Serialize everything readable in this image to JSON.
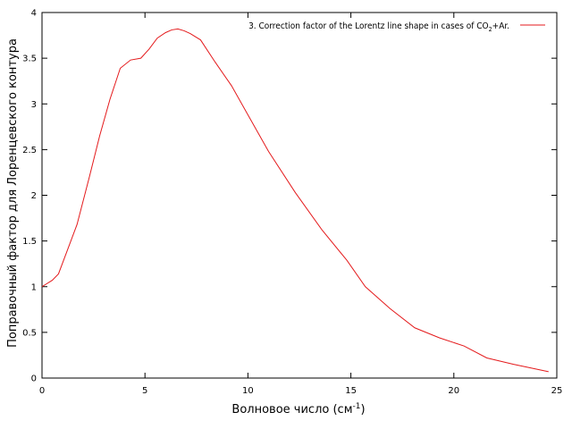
{
  "chart_data": {
    "type": "line",
    "title": "",
    "xlabel": "Волновое число (см",
    "xlabel_sup": "-1",
    "xlabel_suffix": ")",
    "ylabel": "Поправочный фактор для Лоренцевского контура",
    "xlim": [
      0,
      25
    ],
    "ylim": [
      0,
      4
    ],
    "x_ticks": [
      0,
      5,
      10,
      15,
      20,
      25
    ],
    "y_ticks": [
      0,
      0.5,
      1,
      1.5,
      2,
      2.5,
      3,
      3.5,
      4
    ],
    "x_tick_labels": [
      "0",
      "5",
      "10",
      "15",
      "20",
      "25"
    ],
    "y_tick_labels": [
      "0",
      "0.5",
      "1",
      "1.5",
      "2",
      "2.5",
      "3",
      "3.5",
      "4"
    ],
    "grid": false,
    "legend_position": "top-right",
    "legend": {
      "prefix": "3. Correction factor of the Lorentz line shape in cases of CO",
      "sub": "2",
      "suffix": "+Ar."
    },
    "series": [
      {
        "name": "3. Correction factor of the Lorentz line shape in cases of CO2+Ar.",
        "color": "#e41a1c",
        "x": [
          0,
          0.5,
          0.8,
          1.2,
          1.7,
          2.3,
          2.8,
          3.3,
          3.8,
          4.3,
          4.8,
          5.2,
          5.6,
          6.0,
          6.3,
          6.6,
          6.9,
          7.2,
          7.7,
          8.4,
          9.2,
          10.0,
          11.0,
          12.3,
          13.6,
          14.8,
          15.7,
          16.9,
          18.1,
          19.3,
          20.5,
          21.6,
          22.9,
          24.6
        ],
        "y": [
          1.0,
          1.07,
          1.14,
          1.38,
          1.68,
          2.2,
          2.65,
          3.05,
          3.39,
          3.48,
          3.5,
          3.6,
          3.72,
          3.78,
          3.81,
          3.82,
          3.8,
          3.77,
          3.7,
          3.46,
          3.2,
          2.88,
          2.48,
          2.03,
          1.62,
          1.29,
          1.0,
          0.76,
          0.55,
          0.44,
          0.35,
          0.22,
          0.15,
          0.07
        ]
      }
    ]
  }
}
